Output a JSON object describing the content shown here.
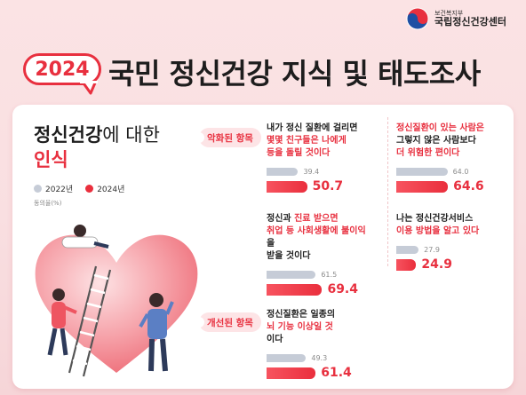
{
  "header": {
    "org_small": "보건복지부",
    "org_big": "국립정신건강센터",
    "year": "2024",
    "title": "국민 정신건강 지식 및 태도조사"
  },
  "section": {
    "title_bold": "정신건강",
    "title_thin": "에 대한",
    "title_red": "인식",
    "legend": [
      "2022년",
      "2024년"
    ],
    "unit": "동의율(%)"
  },
  "colors": {
    "accent": "#e8303f",
    "series_2022": "#c6ccd7",
    "series_2024": "#ea2f3d"
  },
  "categories": {
    "worse": "악화된 항목",
    "better": "개선된 항목"
  },
  "chart_data": {
    "type": "bar",
    "title": "정신건강에 대한 인식",
    "ylabel": "동의율(%)",
    "ylim": [
      0,
      100
    ],
    "legend_position": "top-left",
    "series": [
      {
        "name": "2022년",
        "values": [
          39.4,
          64.0,
          61.5,
          27.9,
          49.3
        ]
      },
      {
        "name": "2024년",
        "values": [
          50.7,
          64.6,
          69.4,
          24.9,
          61.4
        ]
      }
    ],
    "items": [
      {
        "group": "악화된 항목",
        "lines": [
          [
            "내가 정신 질환에 걸리면",
            ""
          ],
          [
            "",
            "몇몇 친구들은 나에게"
          ],
          [
            "",
            "등을 돌릴 것이다"
          ]
        ],
        "v2022": "39.4",
        "v2024": "50.7"
      },
      {
        "group": "악화된 항목",
        "lines": [
          [
            "",
            "정신질환이 있는 사람은"
          ],
          [
            "그렇지 않은 사람보다",
            ""
          ],
          [
            "",
            "더 위험한 편이다"
          ]
        ],
        "v2022": "64.0",
        "v2024": "64.6"
      },
      {
        "group": "악화된 항목",
        "lines": [
          [
            "정신과 ",
            "진료 받으면"
          ],
          [
            "",
            "취업 등 사회생활에 불이익"
          ],
          [
            "을",
            ""
          ],
          [
            "받을 것이다",
            ""
          ]
        ],
        "v2022": "61.5",
        "v2024": "69.4"
      },
      {
        "group": "악화된 항목",
        "lines": [
          [
            "나는 정신건강서비스",
            ""
          ],
          [
            "",
            "이용 방법을 알고 있다"
          ]
        ],
        "v2022": "27.9",
        "v2024": "24.9"
      },
      {
        "group": "개선된 항목",
        "lines": [
          [
            "정신질환은 일종의",
            ""
          ],
          [
            "",
            "뇌 기능 이상일 것"
          ],
          [
            "이다",
            ""
          ]
        ],
        "v2022": "49.3",
        "v2024": "61.4"
      }
    ]
  }
}
